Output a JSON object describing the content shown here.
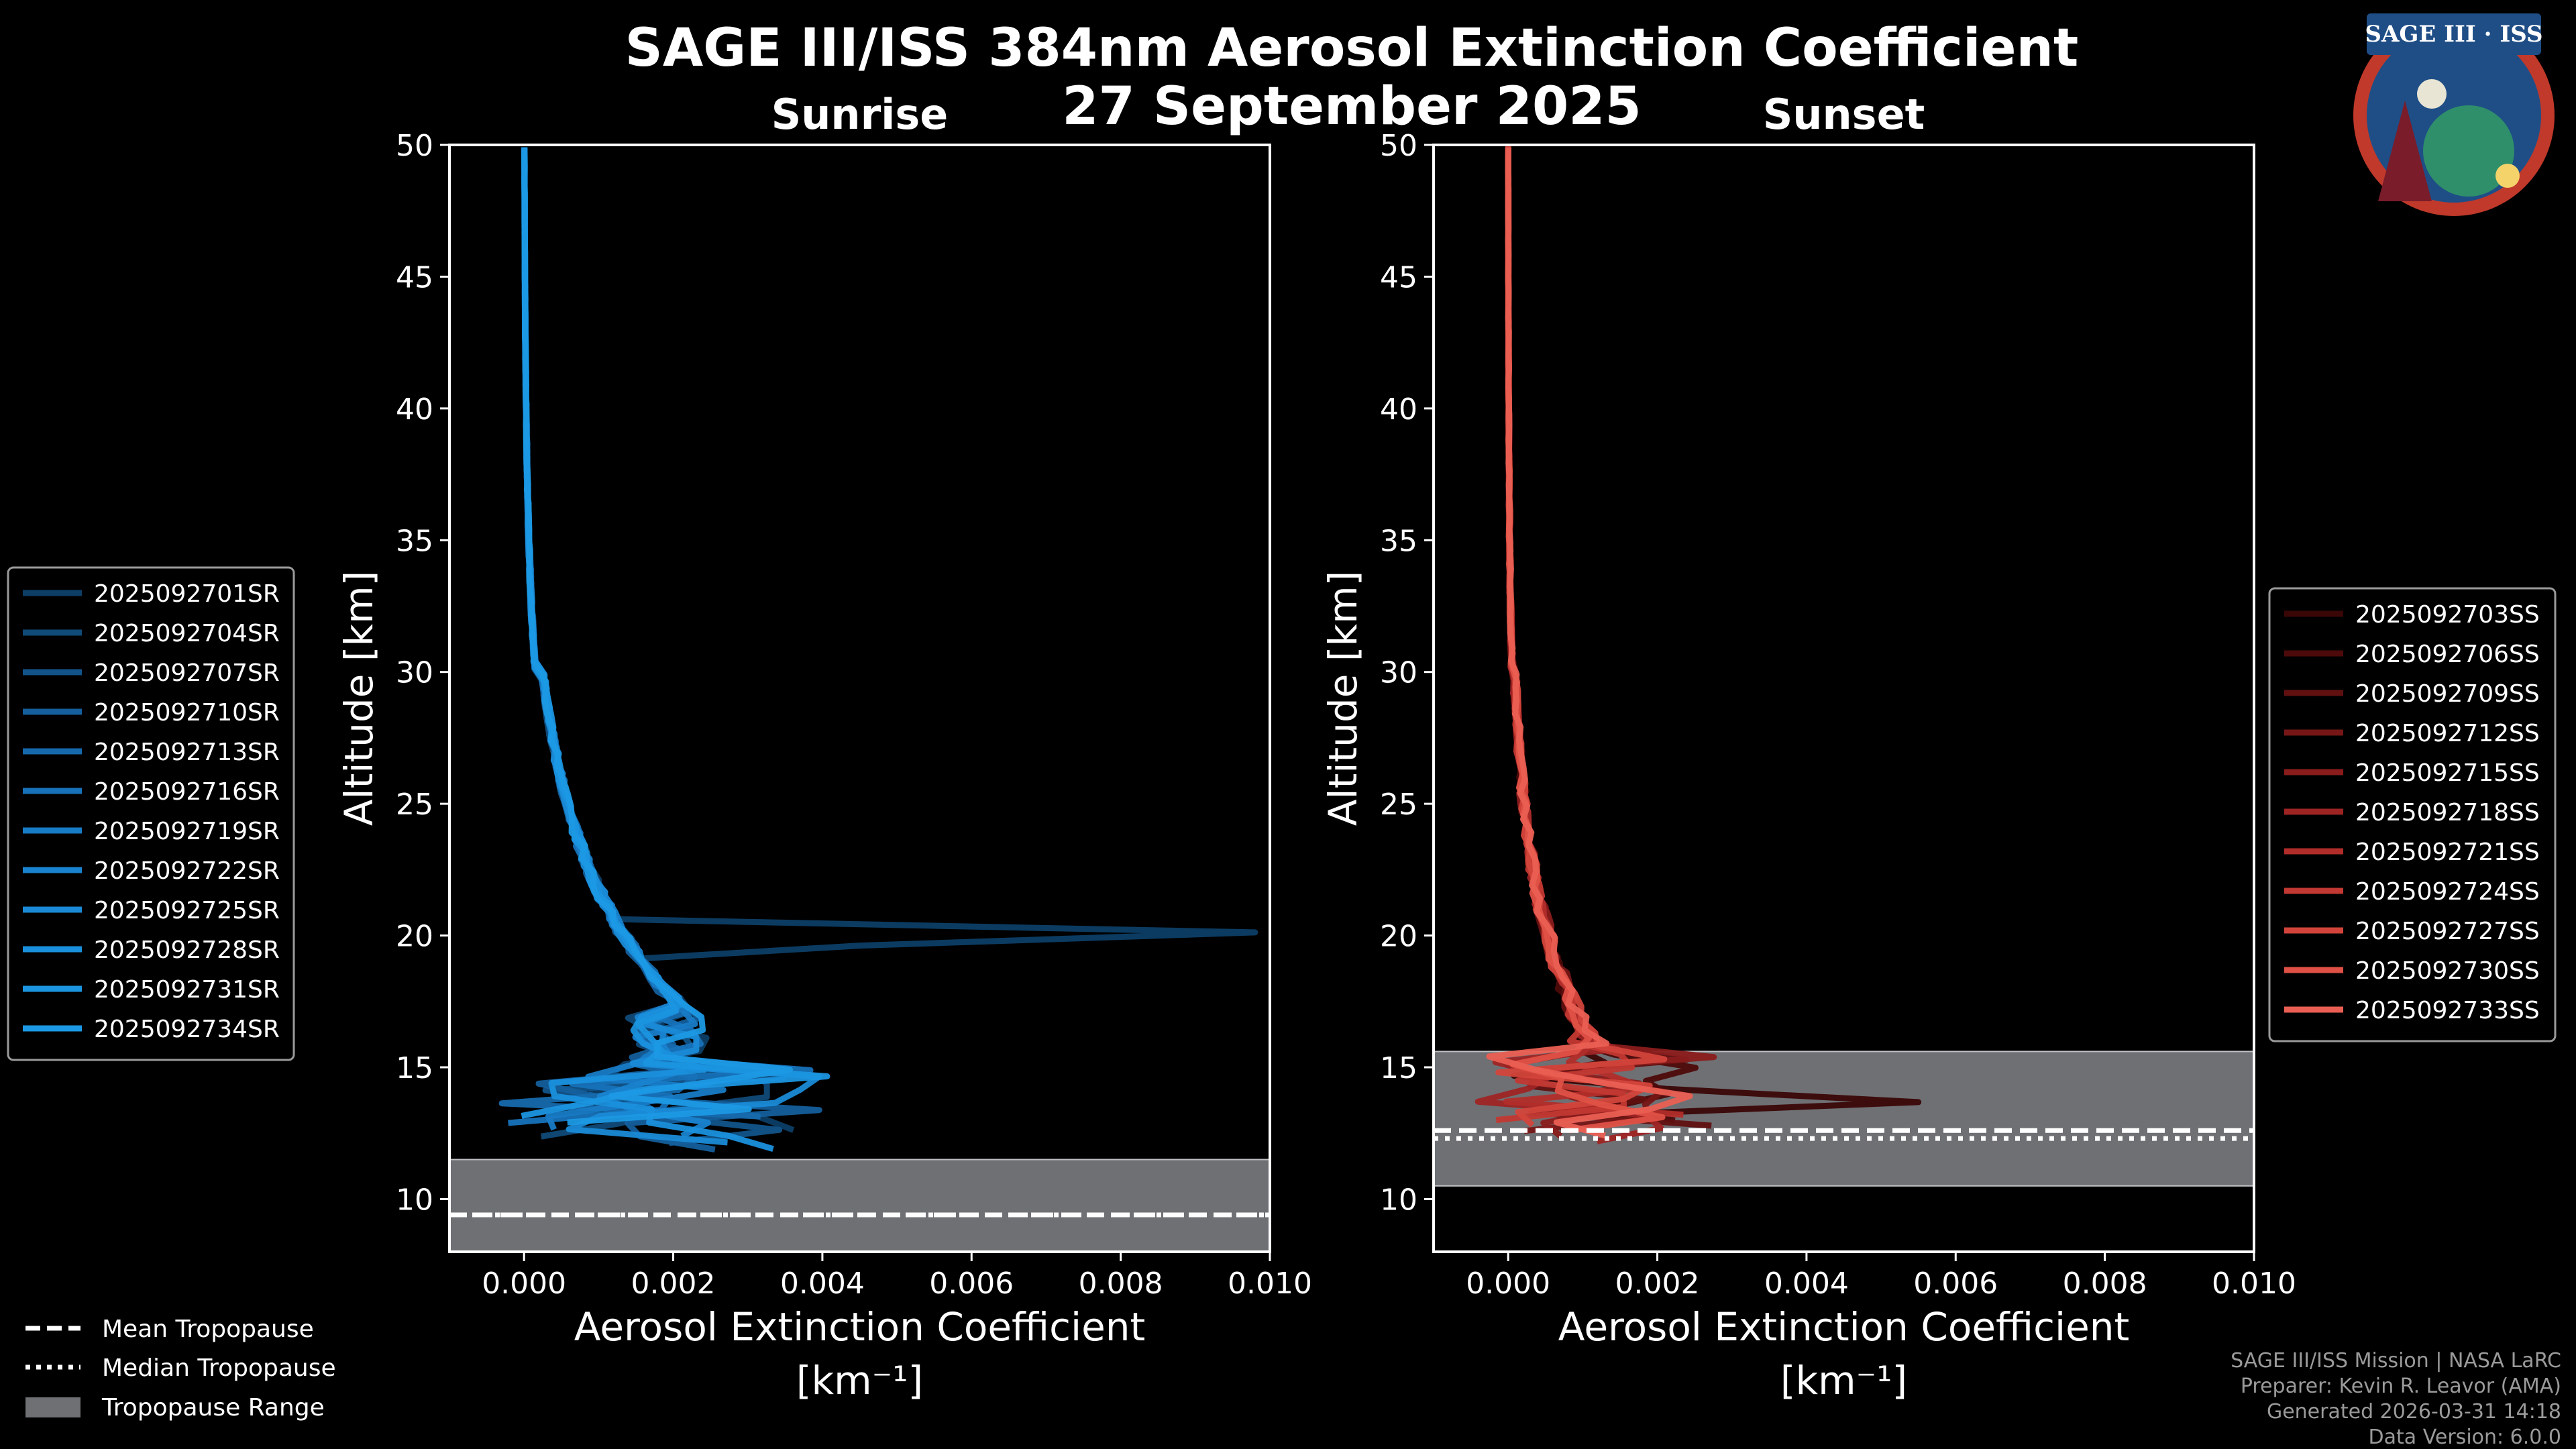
{
  "title": "SAGE III/ISS 384nm Aerosol Extinction Coefficient",
  "date": "27 September 2025",
  "logo": {
    "text": "SAGE III · ISS",
    "colors": {
      "ring": "#c0392b",
      "field": "#1f4e86"
    }
  },
  "chart_data": [
    {
      "type": "line",
      "panel": "Sunrise",
      "title": "Sunrise",
      "xlabel": "Aerosol Extinction Coefficient",
      "xunit": "[km⁻¹]",
      "ylabel": "Altitude [km]",
      "xlim": [
        -0.001,
        0.01
      ],
      "ylim": [
        8,
        50
      ],
      "xticks": [
        "0.000",
        "0.002",
        "0.004",
        "0.006",
        "0.008",
        "0.010"
      ],
      "yticks": [
        "10",
        "15",
        "20",
        "25",
        "30",
        "35",
        "40",
        "45",
        "50"
      ],
      "tropopause": {
        "mean": 9.4,
        "median": 9.4,
        "range": [
          8,
          11.5
        ]
      },
      "series": [
        {
          "name": "2025092701SR",
          "color": "#0d3e66"
        },
        {
          "name": "2025092704SR",
          "color": "#104a78"
        },
        {
          "name": "2025092707SR",
          "color": "#12548a"
        },
        {
          "name": "2025092710SR",
          "color": "#145f9c"
        },
        {
          "name": "2025092713SR",
          "color": "#1669ac"
        },
        {
          "name": "2025092716SR",
          "color": "#1772b9"
        },
        {
          "name": "2025092719SR",
          "color": "#187bc6"
        },
        {
          "name": "2025092722SR",
          "color": "#1983cf"
        },
        {
          "name": "2025092725SR",
          "color": "#1a8ad6"
        },
        {
          "name": "2025092728SR",
          "color": "#1a90dc"
        },
        {
          "name": "2025092731SR",
          "color": "#1b95e0"
        },
        {
          "name": "2025092734SR",
          "color": "#1c99e4"
        }
      ],
      "legend_position": "left"
    },
    {
      "type": "line",
      "panel": "Sunset",
      "title": "Sunset",
      "xlabel": "Aerosol Extinction Coefficient",
      "xunit": "[km⁻¹]",
      "ylabel": "Altitude [km]",
      "xlim": [
        -0.001,
        0.01
      ],
      "ylim": [
        8,
        50
      ],
      "xticks": [
        "0.000",
        "0.002",
        "0.004",
        "0.006",
        "0.008",
        "0.010"
      ],
      "yticks": [
        "10",
        "15",
        "20",
        "25",
        "30",
        "35",
        "40",
        "45",
        "50"
      ],
      "tropopause": {
        "mean": 12.6,
        "median": 12.3,
        "range": [
          10.5,
          15.6
        ]
      },
      "series": [
        {
          "name": "2025092703SS",
          "color": "#3a0606"
        },
        {
          "name": "2025092706SS",
          "color": "#4d0a0a"
        },
        {
          "name": "2025092709SS",
          "color": "#611010"
        },
        {
          "name": "2025092712SS",
          "color": "#761616"
        },
        {
          "name": "2025092715SS",
          "color": "#8a1c1c"
        },
        {
          "name": "2025092718SS",
          "color": "#9e2424"
        },
        {
          "name": "2025092721SS",
          "color": "#b12d2a"
        },
        {
          "name": "2025092724SS",
          "color": "#c23832"
        },
        {
          "name": "2025092727SS",
          "color": "#d2443b"
        },
        {
          "name": "2025092730SS",
          "color": "#df5146"
        },
        {
          "name": "2025092733SS",
          "color": "#ea5f53"
        }
      ],
      "legend_position": "right"
    }
  ],
  "tropopause_legend": {
    "mean": "Mean Tropopause",
    "median": "Median Tropopause",
    "range": "Tropopause Range"
  },
  "credits": [
    "SAGE III/ISS Mission | NASA LaRC",
    "Preparer: Kevin R. Leavor (AMA)",
    "Generated 2026-03-31 14:18",
    "Data Version: 6.0.0"
  ]
}
